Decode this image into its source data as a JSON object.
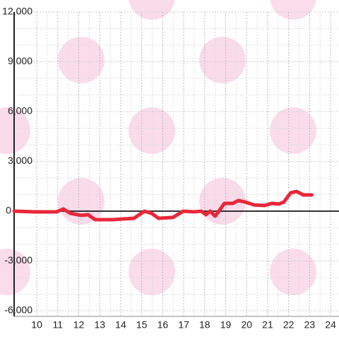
{
  "chart_data": {
    "type": "line",
    "x": [
      8.92,
      9.93,
      10.94,
      11.27,
      11.6,
      12.1,
      12.44,
      12.78,
      13.62,
      14.12,
      14.63,
      15.13,
      15.47,
      15.8,
      16.48,
      16.98,
      17.49,
      17.83,
      18.06,
      18.26,
      18.5,
      18.94,
      19.34,
      19.6,
      19.94,
      20.35,
      20.85,
      21.2,
      21.53,
      21.77,
      22.1,
      22.37,
      22.7,
      23.1
    ],
    "series": [
      {
        "color": "#e8283a",
        "values": [
          0,
          -40,
          -40,
          130,
          -130,
          -250,
          -210,
          -510,
          -510,
          -470,
          -430,
          0,
          -130,
          -430,
          -380,
          0,
          -40,
          0,
          -210,
          0,
          -300,
          470,
          470,
          640,
          550,
          380,
          340,
          470,
          430,
          550,
          1110,
          1190,
          980,
          980
        ]
      }
    ],
    "xlim": [
      8.92,
      24.4
    ],
    "ylim": [
      -6000,
      12000
    ],
    "xticks": [
      10,
      11,
      12,
      13,
      14,
      15,
      16,
      17,
      18,
      19,
      20,
      21,
      22,
      23,
      24
    ],
    "yticks": [
      {
        "value": -6000,
        "label": "-6,000"
      },
      {
        "value": -3000,
        "label": "-3,000"
      },
      0,
      {
        "value": 3000,
        "label": "3,000"
      },
      {
        "value": 6000,
        "label": "6,000"
      },
      {
        "value": 9000,
        "label": "9,000"
      },
      {
        "value": 12000,
        "label": "12,000"
      }
    ],
    "grid": true
  }
}
